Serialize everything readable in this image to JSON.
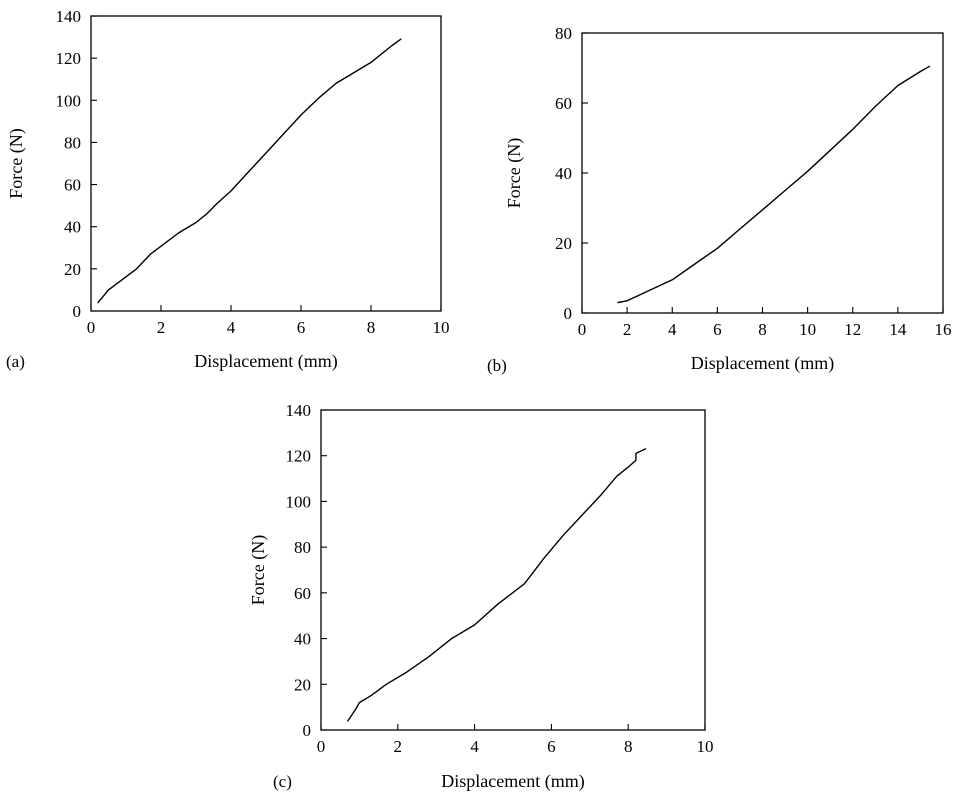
{
  "figure": {
    "line_color": "#000000",
    "background": "#ffffff"
  },
  "chart_data": [
    {
      "panel": "(a)",
      "type": "line",
      "xlabel": "Displacement (mm)",
      "ylabel": "Force (N)",
      "xlim": [
        0,
        10
      ],
      "ylim": [
        0,
        140
      ],
      "xticks": [
        "0",
        "2",
        "4",
        "6",
        "8",
        "10"
      ],
      "yticks": [
        "0",
        "20",
        "40",
        "60",
        "80",
        "100",
        "120",
        "140"
      ],
      "grid": false,
      "legend": "none",
      "series": [
        {
          "x": [
            0.2,
            0.5,
            0.9,
            1.3,
            1.7,
            2.1,
            2.5,
            3.0,
            3.3,
            3.6,
            4.0,
            4.5,
            5.0,
            5.5,
            6.0,
            6.5,
            7.0,
            7.5,
            8.0,
            8.3,
            8.6,
            8.85
          ],
          "y": [
            4,
            10,
            15,
            20,
            27,
            32,
            37,
            42,
            46,
            51,
            57,
            66,
            75,
            84,
            93,
            101,
            108,
            113,
            118,
            122,
            126,
            129
          ]
        }
      ]
    },
    {
      "panel": "(b)",
      "type": "line",
      "xlabel": "Displacement (mm)",
      "ylabel": "Force (N)",
      "xlim": [
        0,
        16
      ],
      "ylim": [
        0,
        80
      ],
      "xticks": [
        "0",
        "2",
        "4",
        "6",
        "8",
        "10",
        "12",
        "14",
        "16"
      ],
      "yticks": [
        "0",
        "20",
        "40",
        "60",
        "80"
      ],
      "grid": false,
      "legend": "none",
      "series": [
        {
          "x": [
            1.6,
            2.0,
            2.5,
            3.0,
            4.0,
            5.0,
            6.0,
            7.0,
            8.0,
            9.0,
            10.0,
            11.0,
            12.0,
            13.0,
            14.0,
            14.5,
            15.0,
            15.4
          ],
          "y": [
            3,
            3.5,
            5,
            6.5,
            9.5,
            14,
            18.5,
            24,
            29.5,
            35,
            40.5,
            46.5,
            52.5,
            59,
            65,
            67,
            69,
            70.5
          ]
        }
      ]
    },
    {
      "panel": "(c)",
      "type": "line",
      "xlabel": "Displacement (mm)",
      "ylabel": "Force (N)",
      "xlim": [
        0,
        10
      ],
      "ylim": [
        0,
        140
      ],
      "xticks": [
        "0",
        "2",
        "4",
        "6",
        "8",
        "10"
      ],
      "yticks": [
        "0",
        "20",
        "40",
        "60",
        "80",
        "100",
        "120",
        "140"
      ],
      "grid": false,
      "legend": "none",
      "series": [
        {
          "x": [
            0.7,
            0.9,
            1.0,
            1.3,
            1.7,
            2.2,
            2.8,
            3.4,
            4.0,
            4.6,
            5.3,
            5.8,
            6.3,
            6.8,
            7.3,
            7.5,
            7.7,
            8.0,
            8.2,
            8.2,
            8.45
          ],
          "y": [
            4,
            9,
            12,
            15,
            20,
            25,
            32,
            40,
            46,
            55,
            64,
            75,
            85,
            94,
            103,
            107,
            111,
            115,
            118,
            121,
            123
          ]
        }
      ]
    }
  ]
}
